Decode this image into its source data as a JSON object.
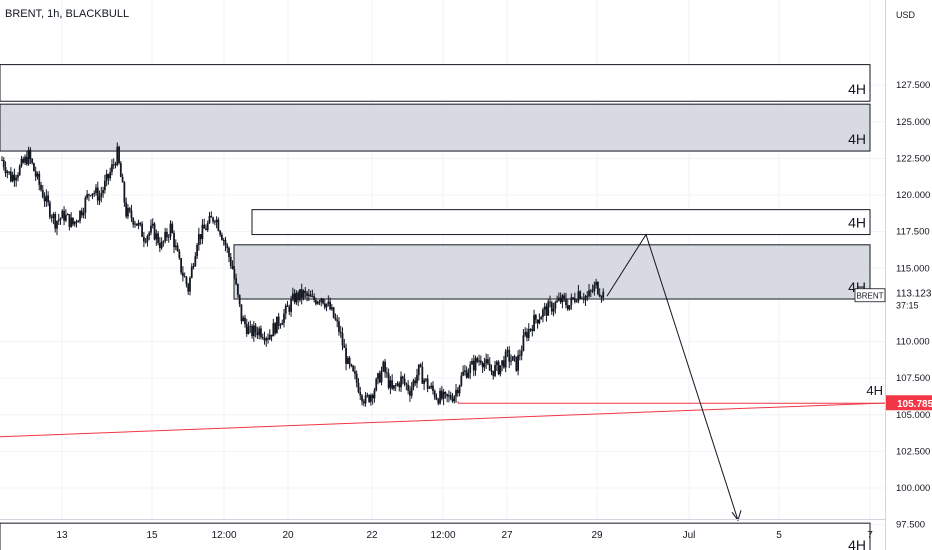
{
  "header": {
    "symbol_title": "BRENT, 1h, BLACKBULL"
  },
  "price_axis": {
    "currency": "USD",
    "ticks": [
      "127.500",
      "125.000",
      "122.500",
      "120.000",
      "117.500",
      "115.000",
      "110.000",
      "107.500",
      "105.000",
      "102.500",
      "100.000",
      "97.500"
    ]
  },
  "time_axis": {
    "ticks": [
      "13",
      "15",
      "12:00",
      "20",
      "22",
      "12:00",
      "27",
      "29",
      "Jul",
      "5",
      "7"
    ]
  },
  "last_price_label": {
    "symbol": "BRENT",
    "price": "113.123",
    "countdown": "37:15"
  },
  "level_label": {
    "price": "105.785"
  },
  "level_tag": "4H",
  "zones": [
    {
      "label": "4H",
      "price_top": 128.9,
      "price_bottom": 126.4,
      "fill": "#ffffff"
    },
    {
      "label": "4H",
      "price_top": 126.2,
      "price_bottom": 123.0,
      "fill": "#d1d4dc"
    },
    {
      "label": "4H",
      "price_top": 119.0,
      "price_bottom": 117.3,
      "fill": "#ffffff"
    },
    {
      "label": "4H",
      "price_top": 116.6,
      "price_bottom": 112.9,
      "fill": "#d1d4dc"
    },
    {
      "label": "4H",
      "price_top": 97.6,
      "price_bottom": 95.3,
      "fill": "#ffffff"
    }
  ],
  "colors": {
    "up": "#26a69a",
    "down": "#ef5350",
    "level": "#f23645",
    "candle": "#131722",
    "zone_border": "#131722",
    "grid": "#f0f3fa"
  },
  "chart_data": {
    "type": "candlestick",
    "symbol": "BRENT",
    "timeframe": "1h",
    "price_range": [
      93.8,
      130.4
    ],
    "close_series": [
      {
        "x": "12",
        "y": 122.4
      },
      {
        "x": "12",
        "y": 121.2
      },
      {
        "x": "12",
        "y": 121.8
      },
      {
        "x": "13",
        "y": 122.7
      },
      {
        "x": "13",
        "y": 121.0
      },
      {
        "x": "13",
        "y": 119.5
      },
      {
        "x": "13",
        "y": 118.2
      },
      {
        "x": "13",
        "y": 118.6
      },
      {
        "x": "14",
        "y": 118.0
      },
      {
        "x": "14",
        "y": 119.0
      },
      {
        "x": "14",
        "y": 120.4
      },
      {
        "x": "14",
        "y": 119.9
      },
      {
        "x": "14",
        "y": 121.2
      },
      {
        "x": "14",
        "y": 122.8
      },
      {
        "x": "15",
        "y": 118.8
      },
      {
        "x": "15",
        "y": 118.3
      },
      {
        "x": "15",
        "y": 117.2
      },
      {
        "x": "16",
        "y": 117.6
      },
      {
        "x": "16",
        "y": 116.5
      },
      {
        "x": "16",
        "y": 117.8
      },
      {
        "x": "16",
        "y": 115.3
      },
      {
        "x": "17",
        "y": 113.6
      },
      {
        "x": "17",
        "y": 117.0
      },
      {
        "x": "17",
        "y": 117.8
      },
      {
        "x": "17",
        "y": 118.6
      },
      {
        "x": "17",
        "y": 117.0
      },
      {
        "x": "17",
        "y": 115.0
      },
      {
        "x": "20",
        "y": 111.6
      },
      {
        "x": "20",
        "y": 110.6
      },
      {
        "x": "20",
        "y": 110.8
      },
      {
        "x": "20",
        "y": 110.4
      },
      {
        "x": "20",
        "y": 111.2
      },
      {
        "x": "21",
        "y": 112.0
      },
      {
        "x": "21",
        "y": 113.0
      },
      {
        "x": "21",
        "y": 113.2
      },
      {
        "x": "21",
        "y": 112.8
      },
      {
        "x": "21",
        "y": 113.1
      },
      {
        "x": "21",
        "y": 112.2
      },
      {
        "x": "22",
        "y": 110.8
      },
      {
        "x": "22",
        "y": 108.4
      },
      {
        "x": "22",
        "y": 107.2
      },
      {
        "x": "22",
        "y": 105.9
      },
      {
        "x": "22",
        "y": 106.8
      },
      {
        "x": "22",
        "y": 108.2
      },
      {
        "x": "23",
        "y": 106.6
      },
      {
        "x": "23",
        "y": 107.4
      },
      {
        "x": "23",
        "y": 106.7
      },
      {
        "x": "23",
        "y": 108.0
      },
      {
        "x": "23",
        "y": 107.0
      },
      {
        "x": "24",
        "y": 106.3
      },
      {
        "x": "24",
        "y": 106.0
      },
      {
        "x": "24",
        "y": 106.4
      },
      {
        "x": "24",
        "y": 107.8
      },
      {
        "x": "24",
        "y": 108.3
      },
      {
        "x": "27",
        "y": 108.9
      },
      {
        "x": "27",
        "y": 108.0
      },
      {
        "x": "27",
        "y": 108.2
      },
      {
        "x": "27",
        "y": 109.0
      },
      {
        "x": "27",
        "y": 108.4
      },
      {
        "x": "28",
        "y": 110.4
      },
      {
        "x": "28",
        "y": 111.4
      },
      {
        "x": "28",
        "y": 112.0
      },
      {
        "x": "28",
        "y": 112.4
      },
      {
        "x": "28",
        "y": 112.8
      },
      {
        "x": "28",
        "y": 112.5
      },
      {
        "x": "29",
        "y": 113.4
      },
      {
        "x": "29",
        "y": 113.0
      },
      {
        "x": "29",
        "y": 113.8
      },
      {
        "x": "29",
        "y": 113.1
      }
    ],
    "projection": [
      {
        "x": "29",
        "y": 113.1
      },
      {
        "x": "30",
        "y": 117.3
      },
      {
        "x": "Jul 4",
        "y": 97.8
      }
    ],
    "trendline": [
      {
        "x": "10",
        "y": 103.5
      },
      {
        "x": "7",
        "y": 105.8
      }
    ],
    "level_line": {
      "price": 105.785,
      "from": "23",
      "to": "7"
    }
  }
}
